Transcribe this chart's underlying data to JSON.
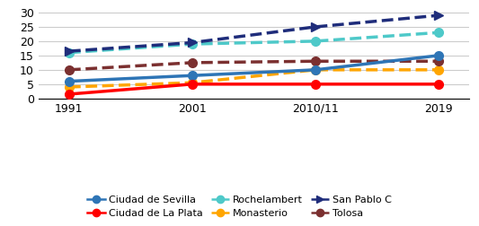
{
  "x_labels": [
    "1991",
    "2001",
    "2010/11",
    "2019"
  ],
  "x_positions": [
    0,
    1,
    2,
    3
  ],
  "series": [
    {
      "name": "Ciudad de Sevilla",
      "values": [
        6,
        8,
        10,
        15
      ],
      "color": "#2E75B6",
      "linestyle": "solid",
      "marker": "o",
      "linewidth": 2.5,
      "markersize": 7,
      "zorder": 5
    },
    {
      "name": "Ciudad de La Plata",
      "values": [
        1.5,
        5,
        5,
        5
      ],
      "color": "#FF0000",
      "linestyle": "solid",
      "marker": "o",
      "linewidth": 2.5,
      "markersize": 7,
      "zorder": 5
    },
    {
      "name": "Rochelambert",
      "values": [
        16,
        19,
        20,
        23
      ],
      "color": "#4EC9C9",
      "linestyle": "dashed",
      "marker": "o",
      "linewidth": 2.5,
      "markersize": 7,
      "zorder": 4
    },
    {
      "name": "Monasterio",
      "values": [
        4,
        5.5,
        10,
        10
      ],
      "color": "#FFA500",
      "linestyle": "dashed",
      "marker": "o",
      "linewidth": 2.5,
      "markersize": 7,
      "zorder": 4
    },
    {
      "name": "San Pablo C",
      "values": [
        16.5,
        19.5,
        25,
        29
      ],
      "color": "#1F2D7B",
      "linestyle": "dashed",
      "marker": ">",
      "linewidth": 2.5,
      "markersize": 7,
      "zorder": 6
    },
    {
      "name": "Tolosa",
      "values": [
        10,
        12.5,
        13,
        13
      ],
      "color": "#7B3030",
      "linestyle": "dashed",
      "marker": "o",
      "linewidth": 2.5,
      "markersize": 7,
      "zorder": 4
    }
  ],
  "ylim": [
    0,
    32
  ],
  "yticks": [
    0,
    5,
    10,
    15,
    20,
    25,
    30
  ],
  "background_color": "#FFFFFF",
  "grid_color": "#CCCCCC",
  "legend_ncol": 3,
  "figsize": [
    5.33,
    2.52
  ],
  "dpi": 100
}
